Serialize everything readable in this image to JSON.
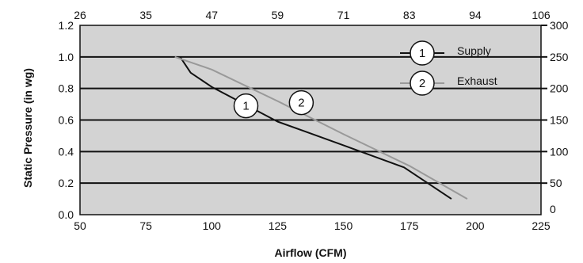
{
  "chart_data": {
    "type": "line",
    "title": "",
    "xlabel": "Airflow (CFM)",
    "ylabel": "Static Pressure (in wg)",
    "xlim": [
      50,
      225
    ],
    "ylim": [
      0.0,
      1.2
    ],
    "x_ticks": [
      "50",
      "75",
      "100",
      "125",
      "150",
      "175",
      "200",
      "225"
    ],
    "y_ticks": [
      "0.0",
      "0.2",
      "0.4",
      "0.6",
      "0.8",
      "1.0",
      "1.2"
    ],
    "top_axis_ticks": [
      "26",
      "35",
      "47",
      "59",
      "71",
      "83",
      "94",
      "106"
    ],
    "right_axis_ticks": [
      "0",
      "50",
      "100",
      "150",
      "200",
      "250",
      "300"
    ],
    "grid": "horizontal",
    "legend_position": "top-right",
    "series": [
      {
        "name": "Supply",
        "marker": "1",
        "color": "#111111",
        "x": [
          88,
          92,
          100,
          125,
          150,
          173,
          191
        ],
        "y": [
          1.0,
          0.9,
          0.81,
          0.59,
          0.44,
          0.3,
          0.1
        ]
      },
      {
        "name": "Exhaust",
        "marker": "2",
        "color": "#999999",
        "x": [
          86,
          100,
          125,
          150,
          175,
          197
        ],
        "y": [
          1.0,
          0.92,
          0.72,
          0.51,
          0.31,
          0.1
        ]
      }
    ],
    "plot_background": "#d3d3d3"
  }
}
